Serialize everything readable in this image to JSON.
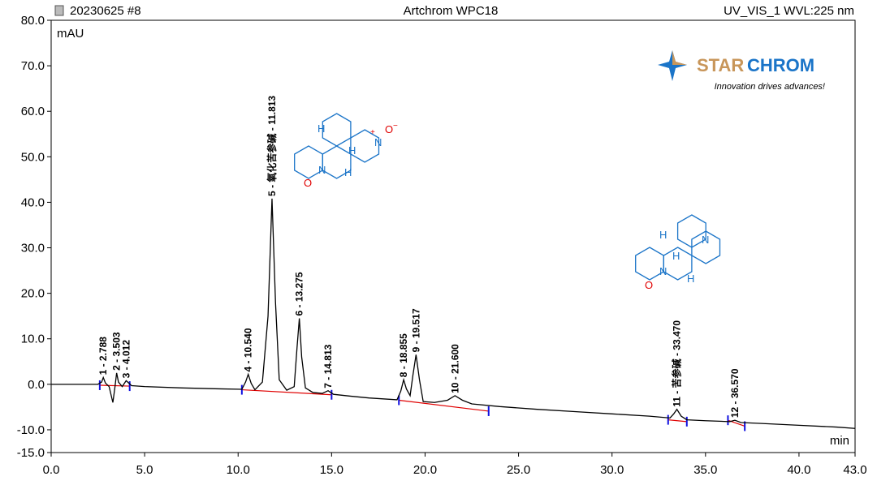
{
  "header": {
    "left": "20230625 #8",
    "center": "Artchrom WPC18",
    "right": "UV_VIS_1 WVL:225 nm"
  },
  "logo": {
    "star": "STAR",
    "chrom": "CHROM",
    "tagline": "Innovation drives advances!"
  },
  "structures": [
    {
      "atoms": [
        "H",
        "N",
        "O",
        "H",
        "N",
        "+",
        "O",
        "−",
        "H"
      ]
    },
    {
      "atoms": [
        "H",
        "N",
        "O",
        "H",
        "N",
        "H"
      ]
    }
  ],
  "chart_data": {
    "type": "line",
    "y_label": "mAU",
    "x_label": "min",
    "xlim": [
      0,
      43
    ],
    "ylim": [
      -15,
      80
    ],
    "xticks": [
      {
        "value": 0,
        "label": "0.0"
      },
      {
        "value": 5,
        "label": "5.0"
      },
      {
        "value": 10,
        "label": "10.0"
      },
      {
        "value": 15,
        "label": "15.0"
      },
      {
        "value": 20,
        "label": "20.0"
      },
      {
        "value": 25,
        "label": "25.0"
      },
      {
        "value": 30,
        "label": "30.0"
      },
      {
        "value": 35,
        "label": "35.0"
      },
      {
        "value": 40,
        "label": "40.0"
      },
      {
        "value": 43,
        "label": "43.0"
      }
    ],
    "yticks": [
      {
        "value": -15,
        "label": "-15.0"
      },
      {
        "value": -10,
        "label": "-10.0"
      },
      {
        "value": 0,
        "label": "0.0"
      },
      {
        "value": 10,
        "label": "10.0"
      },
      {
        "value": 20,
        "label": "20.0"
      },
      {
        "value": 30,
        "label": "30.0"
      },
      {
        "value": 40,
        "label": "40.0"
      },
      {
        "value": 50,
        "label": "50.0"
      },
      {
        "value": 60,
        "label": "60.0"
      },
      {
        "value": 70,
        "label": "70.0"
      },
      {
        "value": 80,
        "label": "80.0"
      }
    ],
    "series": [
      {
        "color": "#000000",
        "x": [
          0,
          1,
          2,
          2.5,
          2.7,
          2.788,
          2.9,
          3.1,
          3.3,
          3.4,
          3.503,
          3.6,
          3.8,
          4.012,
          4.3,
          5,
          7,
          9,
          10.2,
          10.4,
          10.54,
          10.7,
          10.9,
          11.3,
          11.6,
          11.813,
          12.0,
          12.2,
          12.6,
          13.0,
          13.15,
          13.275,
          13.4,
          13.6,
          14.0,
          14.5,
          14.813,
          15.1,
          16,
          17,
          18.5,
          18.7,
          18.855,
          19.0,
          19.2,
          19.35,
          19.517,
          19.7,
          19.9,
          20.5,
          21.2,
          21.6,
          22.0,
          22.5,
          24,
          26,
          28,
          30,
          32,
          33.1,
          33.3,
          33.47,
          33.7,
          34,
          35,
          36.3,
          36.57,
          36.9,
          38,
          40,
          42,
          43
        ],
        "values": [
          0,
          0,
          0,
          0,
          0.5,
          1.5,
          0.3,
          -0.5,
          -4,
          -1,
          2.5,
          0.5,
          -0.5,
          0.8,
          -0.3,
          -0.5,
          -0.8,
          -1,
          -1.1,
          0.5,
          2.2,
          0.2,
          -1.2,
          0.5,
          15,
          40.8,
          18,
          1,
          -1.3,
          -0.5,
          8,
          14.5,
          6,
          -0.8,
          -1.8,
          -2,
          -1.4,
          -2.2,
          -2.6,
          -3,
          -3.4,
          -1.5,
          1,
          -1,
          -2.5,
          2,
          6.5,
          1,
          -3.8,
          -4,
          -3.5,
          -2.5,
          -3.5,
          -4.3,
          -4.9,
          -5.5,
          -6,
          -6.5,
          -7,
          -7.4,
          -6.5,
          -5.5,
          -7,
          -7.8,
          -8,
          -8.2,
          -7.9,
          -8.4,
          -8.6,
          -9,
          -9.4,
          -9.7
        ]
      }
    ],
    "baselines": [
      {
        "color": "#e00000",
        "x": [
          2.6,
          4.2
        ],
        "y": [
          -0.2,
          -0.4
        ]
      },
      {
        "color": "#e00000",
        "x": [
          10.2,
          15.0
        ],
        "y": [
          -1.2,
          -2.3
        ]
      },
      {
        "color": "#e00000",
        "x": [
          18.6,
          23.4
        ],
        "y": [
          -3.5,
          -5.9
        ]
      },
      {
        "color": "#e00000",
        "x": [
          33.0,
          34.0
        ],
        "y": [
          -7.8,
          -8.2
        ]
      },
      {
        "color": "#e00000",
        "x": [
          36.2,
          37.1
        ],
        "y": [
          -7.9,
          -9.2
        ]
      }
    ],
    "peaks": [
      {
        "label": "1 - 2.788",
        "time": 2.788,
        "height": 1.5
      },
      {
        "label": "2 - 3.503",
        "time": 3.503,
        "height": 2.5
      },
      {
        "label": "3 - 4.012",
        "time": 4.012,
        "height": 0.8
      },
      {
        "label": "4 - 10.540",
        "time": 10.54,
        "height": 2.2
      },
      {
        "label": "5 - 氧化苦参碱 - 11.813",
        "time": 11.813,
        "height": 40.8
      },
      {
        "label": "6 - 13.275",
        "time": 13.275,
        "height": 14.5
      },
      {
        "label": "7 - 14.813",
        "time": 14.813,
        "height": -1.4
      },
      {
        "label": "8 - 18.855",
        "time": 18.855,
        "height": 1
      },
      {
        "label": "9 - 19.517",
        "time": 19.517,
        "height": 6.5
      },
      {
        "label": "10 - 21.600",
        "time": 21.6,
        "height": -2.5
      },
      {
        "label": "11 - 苦参碱 - 33.470",
        "time": 33.47,
        "height": -5.5
      },
      {
        "label": "12 - 36.570",
        "time": 36.57,
        "height": -7.9
      }
    ]
  }
}
